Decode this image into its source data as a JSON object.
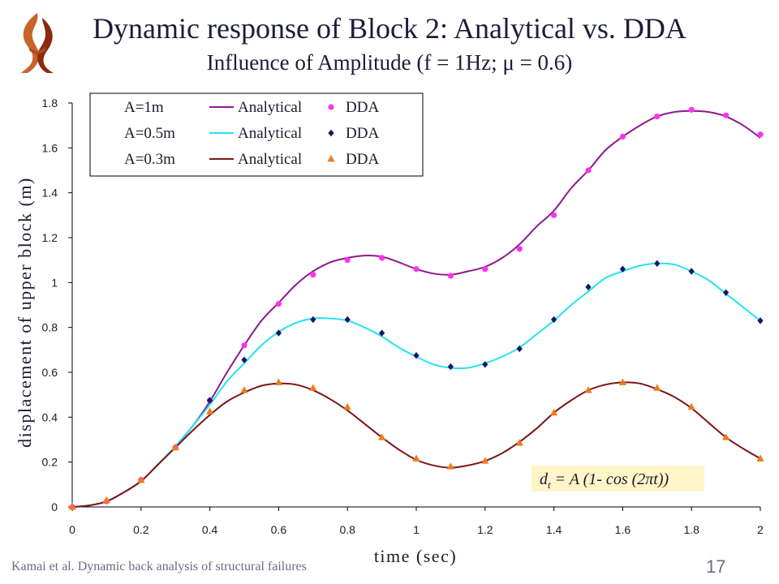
{
  "slide": {
    "title": "Dynamic response of Block 2: Analytical vs. DDA",
    "subtitle": "Influence of Amplitude (f = 1Hz; μ = 0.6)",
    "footer": "Kamai et al. Dynamic back analysis of structural failures",
    "page_number": "17",
    "logo_icon": "university-flame-logo-icon"
  },
  "chart_data": {
    "type": "line",
    "xlabel": "time (sec)",
    "ylabel": "displacement of upper block (m)",
    "xlim": [
      0,
      2
    ],
    "ylim": [
      0,
      1.8
    ],
    "x_ticks": [
      "0",
      "0.2",
      "0.4",
      "0.6",
      "0.8",
      "1",
      "1.2",
      "1.4",
      "1.6",
      "1.8",
      "2"
    ],
    "y_ticks": [
      "0",
      "0.2",
      "0.4",
      "0.6",
      "0.8",
      "1",
      "1.2",
      "1.4",
      "1.6",
      "1.8"
    ],
    "grid": false,
    "legend_position": "top-left",
    "annotation": "d t = A (1- cos (2πt))",
    "annotation_parts": {
      "base": "d",
      "sub": "t",
      "rest": " = A (1- cos (2πt))"
    },
    "legend_rows": [
      {
        "amp_label": "A=1m",
        "line_label": "Analytical",
        "marker_label": "DDA"
      },
      {
        "amp_label": "A=0.5m",
        "line_label": "Analytical",
        "marker_label": "DDA"
      },
      {
        "amp_label": "A=0.3m",
        "line_label": "Analytical",
        "marker_label": "DDA"
      }
    ],
    "series": [
      {
        "amplitude": "A=1m",
        "line_color": "#8b1a8b",
        "marker_color": "#ff33ee",
        "marker": "circle",
        "analytical_x": [
          0,
          0.05,
          0.1,
          0.15,
          0.2,
          0.25,
          0.3,
          0.35,
          0.4,
          0.45,
          0.5,
          0.55,
          0.6,
          0.65,
          0.7,
          0.75,
          0.8,
          0.85,
          0.9,
          0.95,
          1.0,
          1.05,
          1.1,
          1.15,
          1.2,
          1.25,
          1.3,
          1.35,
          1.4,
          1.45,
          1.5,
          1.55,
          1.6,
          1.65,
          1.7,
          1.75,
          1.8,
          1.85,
          1.9,
          1.95,
          2.0
        ],
        "analytical_y": [
          0,
          0.007,
          0.025,
          0.065,
          0.115,
          0.19,
          0.27,
          0.36,
          0.47,
          0.6,
          0.72,
          0.83,
          0.91,
          0.99,
          1.05,
          1.09,
          1.11,
          1.12,
          1.115,
          1.09,
          1.06,
          1.04,
          1.035,
          1.05,
          1.07,
          1.11,
          1.17,
          1.25,
          1.32,
          1.42,
          1.5,
          1.59,
          1.65,
          1.7,
          1.74,
          1.76,
          1.765,
          1.76,
          1.74,
          1.7,
          1.645
        ],
        "dda_x": [
          0,
          0.1,
          0.2,
          0.3,
          0.4,
          0.5,
          0.6,
          0.7,
          0.8,
          0.9,
          1.0,
          1.1,
          1.2,
          1.3,
          1.4,
          1.5,
          1.6,
          1.7,
          1.8,
          1.9,
          2.0
        ],
        "dda_y": [
          0,
          0.025,
          0.12,
          0.265,
          0.475,
          0.72,
          0.905,
          1.035,
          1.1,
          1.11,
          1.06,
          1.03,
          1.06,
          1.15,
          1.3,
          1.5,
          1.65,
          1.74,
          1.77,
          1.745,
          1.66
        ]
      },
      {
        "amplitude": "A=0.5m",
        "line_color": "#22e4ee",
        "marker_color": "#14146b",
        "marker": "diamond",
        "analytical_x": [
          0,
          0.05,
          0.1,
          0.15,
          0.2,
          0.25,
          0.3,
          0.35,
          0.4,
          0.45,
          0.5,
          0.55,
          0.6,
          0.65,
          0.7,
          0.75,
          0.8,
          0.85,
          0.9,
          0.95,
          1.0,
          1.05,
          1.1,
          1.15,
          1.2,
          1.25,
          1.3,
          1.35,
          1.4,
          1.45,
          1.5,
          1.55,
          1.6,
          1.65,
          1.7,
          1.75,
          1.8,
          1.85,
          1.9,
          1.95,
          2.0
        ],
        "analytical_y": [
          0,
          0.007,
          0.025,
          0.065,
          0.115,
          0.19,
          0.27,
          0.36,
          0.455,
          0.56,
          0.64,
          0.72,
          0.78,
          0.82,
          0.84,
          0.84,
          0.83,
          0.8,
          0.76,
          0.71,
          0.67,
          0.635,
          0.62,
          0.62,
          0.64,
          0.67,
          0.71,
          0.77,
          0.83,
          0.9,
          0.96,
          1.02,
          1.05,
          1.075,
          1.085,
          1.08,
          1.05,
          1.01,
          0.95,
          0.89,
          0.83
        ],
        "dda_x": [
          0.4,
          0.5,
          0.6,
          0.7,
          0.8,
          0.9,
          1.0,
          1.1,
          1.2,
          1.3,
          1.4,
          1.5,
          1.6,
          1.7,
          1.8,
          1.9,
          2.0
        ],
        "dda_y": [
          0.475,
          0.655,
          0.775,
          0.835,
          0.835,
          0.775,
          0.675,
          0.625,
          0.635,
          0.705,
          0.835,
          0.98,
          1.06,
          1.085,
          1.05,
          0.955,
          0.83
        ]
      },
      {
        "amplitude": "A=0.3m",
        "line_color": "#7a1616",
        "marker_color": "#f07a1a",
        "marker": "triangle",
        "analytical_x": [
          0,
          0.05,
          0.1,
          0.15,
          0.2,
          0.25,
          0.3,
          0.35,
          0.4,
          0.45,
          0.5,
          0.55,
          0.6,
          0.65,
          0.7,
          0.75,
          0.8,
          0.85,
          0.9,
          0.95,
          1.0,
          1.05,
          1.1,
          1.15,
          1.2,
          1.25,
          1.3,
          1.35,
          1.4,
          1.45,
          1.5,
          1.55,
          1.6,
          1.65,
          1.7,
          1.75,
          1.8,
          1.85,
          1.9,
          1.95,
          2.0
        ],
        "analytical_y": [
          0,
          0.007,
          0.025,
          0.065,
          0.115,
          0.19,
          0.265,
          0.34,
          0.41,
          0.47,
          0.51,
          0.54,
          0.55,
          0.545,
          0.52,
          0.48,
          0.43,
          0.37,
          0.31,
          0.255,
          0.21,
          0.185,
          0.175,
          0.185,
          0.205,
          0.24,
          0.29,
          0.35,
          0.42,
          0.475,
          0.52,
          0.545,
          0.555,
          0.55,
          0.525,
          0.49,
          0.44,
          0.375,
          0.31,
          0.26,
          0.215
        ],
        "dda_x": [
          0,
          0.1,
          0.2,
          0.3,
          0.4,
          0.5,
          0.6,
          0.7,
          0.8,
          0.9,
          1.0,
          1.1,
          1.2,
          1.3,
          1.4,
          1.5,
          1.6,
          1.7,
          1.8,
          1.9,
          2.0
        ],
        "dda_y": [
          0,
          0.03,
          0.12,
          0.265,
          0.425,
          0.52,
          0.555,
          0.53,
          0.445,
          0.31,
          0.215,
          0.18,
          0.205,
          0.285,
          0.42,
          0.52,
          0.555,
          0.53,
          0.445,
          0.31,
          0.215
        ]
      }
    ]
  }
}
